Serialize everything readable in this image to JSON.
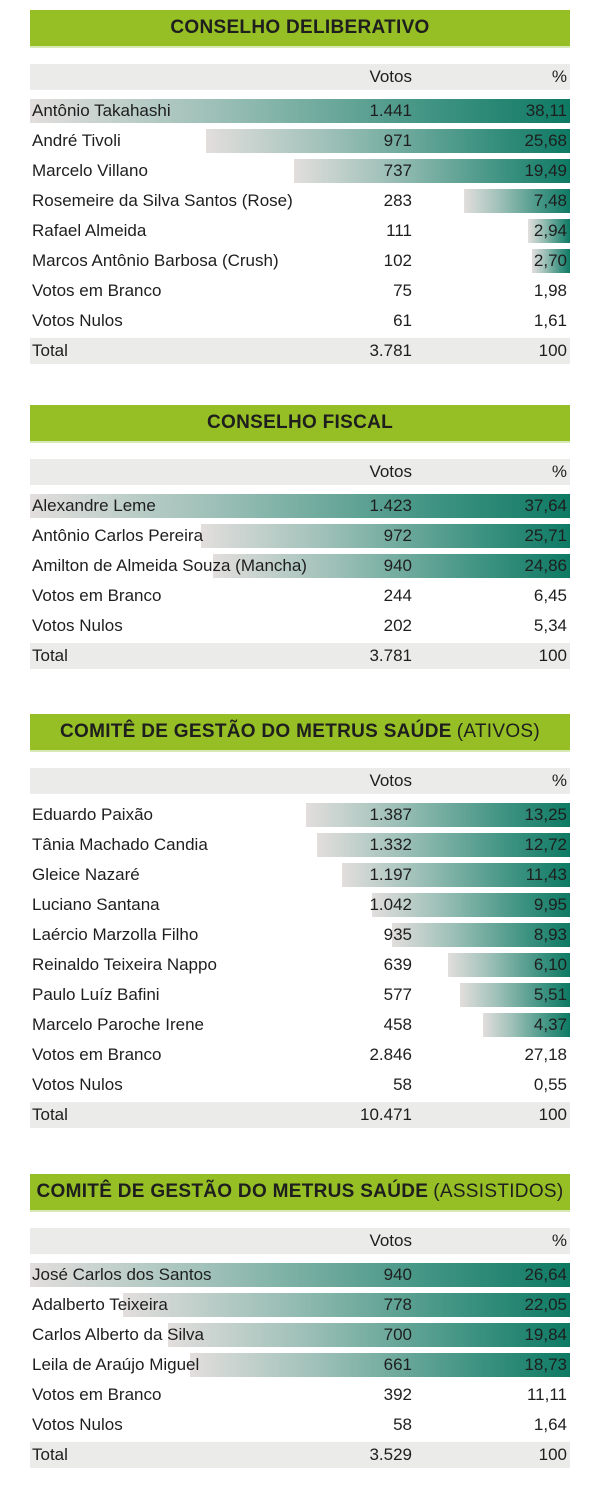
{
  "columns": {
    "votes": "Votos",
    "pct": "%"
  },
  "sections": [
    {
      "title": "CONSELHO DELIBERATIVO",
      "subtitle": "",
      "rows": [
        {
          "name": "Antônio Takahashi",
          "votes": "1.441",
          "pct": "38,11",
          "bar": 38.11
        },
        {
          "name": "André Tivoli",
          "votes": "971",
          "pct": "25,68",
          "bar": 25.68
        },
        {
          "name": "Marcelo Villano",
          "votes": "737",
          "pct": "19,49",
          "bar": 19.49
        },
        {
          "name": "Rosemeire da Silva Santos (Rose)",
          "votes": "283",
          "pct": "7,48",
          "bar": 7.48
        },
        {
          "name": "Rafael Almeida",
          "votes": "111",
          "pct": "2,94",
          "bar": 2.94
        },
        {
          "name": "Marcos Antônio Barbosa (Crush)",
          "votes": "102",
          "pct": "2,70",
          "bar": 2.7
        },
        {
          "name": "Votos em Branco",
          "votes": "75",
          "pct": "1,98"
        },
        {
          "name": "Votos Nulos",
          "votes": "61",
          "pct": "1,61"
        }
      ],
      "total": {
        "name": "Total",
        "votes": "3.781",
        "pct": "100"
      }
    },
    {
      "title": "CONSELHO FISCAL",
      "subtitle": "",
      "rows": [
        {
          "name": "Alexandre Leme",
          "votes": "1.423",
          "pct": "37,64",
          "bar": 37.64
        },
        {
          "name": "Antônio Carlos Pereira",
          "votes": "972",
          "pct": "25,71",
          "bar": 25.71
        },
        {
          "name": "Amilton de Almeida Souza (Mancha)",
          "votes": "940",
          "pct": "24,86",
          "bar": 24.86
        },
        {
          "name": "Votos em Branco",
          "votes": "244",
          "pct": "6,45"
        },
        {
          "name": "Votos Nulos",
          "votes": "202",
          "pct": "5,34"
        }
      ],
      "total": {
        "name": "Total",
        "votes": "3.781",
        "pct": "100"
      }
    },
    {
      "title": "COMITÊ DE GESTÃO DO METRUS SAÚDE",
      "subtitle": "(ATIVOS)",
      "rows": [
        {
          "name": "Eduardo Paixão",
          "votes": "1.387",
          "pct": "13,25",
          "bar": 13.25
        },
        {
          "name": "Tânia Machado Candia",
          "votes": "1.332",
          "pct": "12,72",
          "bar": 12.72
        },
        {
          "name": "Gleice Nazaré",
          "votes": "1.197",
          "pct": "11,43",
          "bar": 11.43
        },
        {
          "name": "Luciano Santana",
          "votes": "1.042",
          "pct": "9,95",
          "bar": 9.95
        },
        {
          "name": "Laércio Marzolla Filho",
          "votes": "935",
          "pct": "8,93",
          "bar": 8.93
        },
        {
          "name": "Reinaldo Teixeira Nappo",
          "votes": "639",
          "pct": "6,10",
          "bar": 6.1
        },
        {
          "name": "Paulo Luíz Bafini",
          "votes": "577",
          "pct": "5,51",
          "bar": 5.51
        },
        {
          "name": "Marcelo Paroche Irene",
          "votes": "458",
          "pct": "4,37",
          "bar": 4.37
        },
        {
          "name": "Votos em Branco",
          "votes": "2.846",
          "pct": "27,18"
        },
        {
          "name": "Votos Nulos",
          "votes": "58",
          "pct": "0,55"
        }
      ],
      "total": {
        "name": "Total",
        "votes": "10.471",
        "pct": "100"
      }
    },
    {
      "title": "COMITÊ DE GESTÃO DO METRUS SAÚDE",
      "subtitle": "(ASSISTIDOS)",
      "rows": [
        {
          "name": "José Carlos dos Santos",
          "votes": "940",
          "pct": "26,64",
          "bar": 26.64
        },
        {
          "name": "Adalberto Teixeira",
          "votes": "778",
          "pct": "22,05",
          "bar": 22.05
        },
        {
          "name": "Carlos Alberto da Silva",
          "votes": "700",
          "pct": "19,84",
          "bar": 19.84
        },
        {
          "name": "Leila de Araújo Miguel",
          "votes": "661",
          "pct": "18,73",
          "bar": 18.73
        },
        {
          "name": "Votos em Branco",
          "votes": "392",
          "pct": "11,11"
        },
        {
          "name": "Votos Nulos",
          "votes": "58",
          "pct": "1,64"
        }
      ],
      "total": {
        "name": "Total",
        "votes": "3.529",
        "pct": "100"
      }
    }
  ]
}
